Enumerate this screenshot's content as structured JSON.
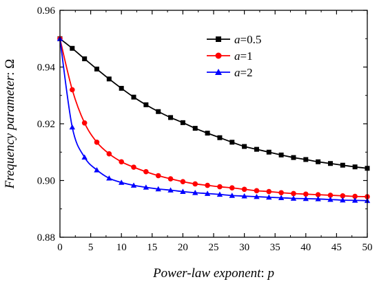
{
  "chart_data": {
    "type": "line",
    "xlabel_italic": "Power-law exponent",
    "xlabel_sep": ": ",
    "xlabel_symbol": "p",
    "ylabel_italic": "Frequency parameter",
    "ylabel_sep": ": ",
    "ylabel_symbol": "Ω",
    "xlim": [
      0,
      50
    ],
    "ylim": [
      0.88,
      0.96
    ],
    "xticks": [
      0,
      5,
      10,
      15,
      20,
      25,
      30,
      35,
      40,
      45,
      50
    ],
    "xtick_labels": [
      "0",
      "5",
      "10",
      "15",
      "20",
      "25",
      "30",
      "35",
      "40",
      "45",
      "50"
    ],
    "yticks": [
      0.88,
      0.9,
      0.92,
      0.94,
      0.96
    ],
    "ytick_labels": [
      "0.88",
      "0.90",
      "0.92",
      "0.94",
      "0.96"
    ],
    "legend_position": "top-right",
    "x": [
      0,
      2,
      4,
      6,
      8,
      10,
      12,
      14,
      16,
      18,
      20,
      22,
      24,
      26,
      28,
      30,
      32,
      34,
      36,
      38,
      40,
      42,
      44,
      46,
      48,
      50
    ],
    "series": [
      {
        "name": "a=0.5",
        "legend_symbol": "a",
        "legend_value": "=0.5",
        "color": "#000000",
        "marker": "square",
        "values": [
          0.95,
          0.9466,
          0.9429,
          0.9393,
          0.9358,
          0.9325,
          0.9294,
          0.9267,
          0.9243,
          0.9222,
          0.9204,
          0.9184,
          0.9167,
          0.9151,
          0.9135,
          0.912,
          0.911,
          0.91,
          0.909,
          0.9081,
          0.9074,
          0.9066,
          0.906,
          0.9054,
          0.9048,
          0.9043
        ]
      },
      {
        "name": "a=1",
        "legend_symbol": "a",
        "legend_value": "=1",
        "color": "#ff0000",
        "marker": "circle",
        "values": [
          0.95,
          0.932,
          0.9203,
          0.9135,
          0.9094,
          0.9066,
          0.9047,
          0.9031,
          0.9017,
          0.9006,
          0.8996,
          0.8988,
          0.8983,
          0.8978,
          0.8974,
          0.8969,
          0.8964,
          0.8961,
          0.8957,
          0.8954,
          0.8952,
          0.895,
          0.8948,
          0.8946,
          0.8944,
          0.8943
        ]
      },
      {
        "name": "a=2",
        "legend_symbol": "a",
        "legend_value": "=2",
        "color": "#0000ff",
        "marker": "triangle",
        "values": [
          0.95,
          0.9188,
          0.9082,
          0.9037,
          0.9008,
          0.8993,
          0.8983,
          0.8976,
          0.897,
          0.8966,
          0.8961,
          0.8957,
          0.8954,
          0.8951,
          0.8947,
          0.8945,
          0.8943,
          0.8941,
          0.8939,
          0.8937,
          0.8936,
          0.8935,
          0.8933,
          0.8931,
          0.893,
          0.8929
        ]
      }
    ]
  }
}
